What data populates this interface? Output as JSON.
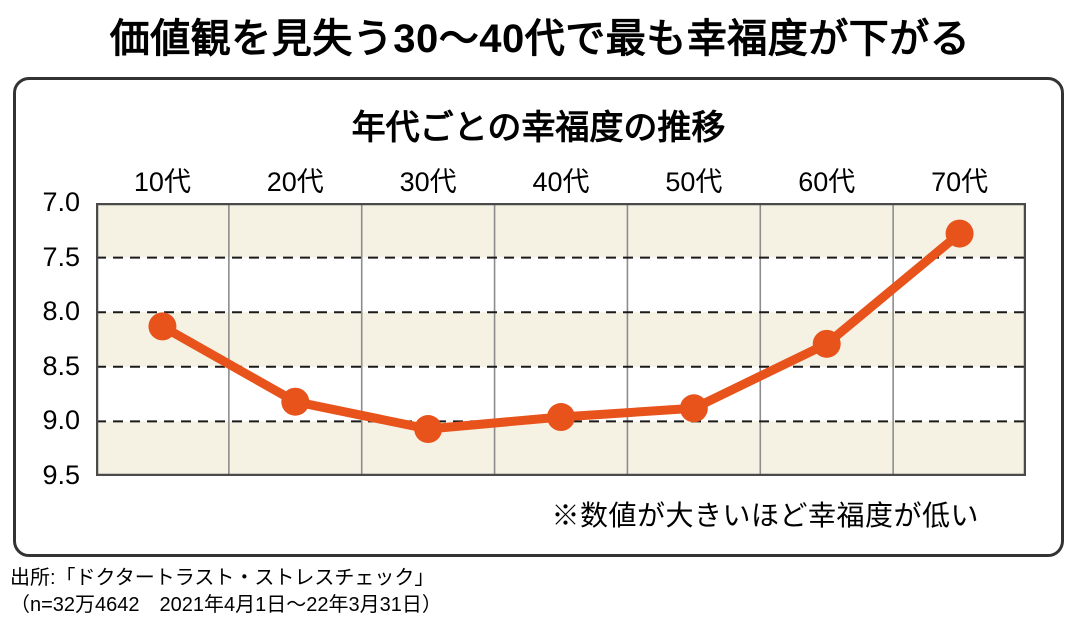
{
  "page": {
    "title": "価値観を見失う30〜40代で最も幸福度が下がる",
    "source_line1": "出所:「ドクタートラスト・ストレスチェック」",
    "source_line2": "（n=32万4642　2021年4月1日〜22年3月31日）"
  },
  "chart_data": {
    "type": "line",
    "title": "年代ごとの幸福度の推移",
    "note": "※数値が大きいほど幸福度が低い",
    "categories": [
      "10代",
      "20代",
      "30代",
      "40代",
      "50代",
      "60代",
      "70代"
    ],
    "values": [
      8.13,
      8.82,
      9.07,
      8.96,
      8.88,
      8.29,
      7.28
    ],
    "yticks": [
      "7.0",
      "7.5",
      "8.0",
      "8.5",
      "9.0",
      "9.5"
    ],
    "ylim": [
      7.0,
      9.5
    ],
    "y_axis_inverted": true,
    "x_axis_position": "top",
    "legend": "none",
    "grid": {
      "horizontal": "dashed",
      "vertical": "solid"
    },
    "colors": {
      "line": "#e8531c",
      "band": "#f5f2e3",
      "band_alt": "#ffffff",
      "vertical_grid": "#8d8d8d",
      "horizontal_grid": "#1a1a1a",
      "plot_border": "#4a4a4a"
    }
  }
}
